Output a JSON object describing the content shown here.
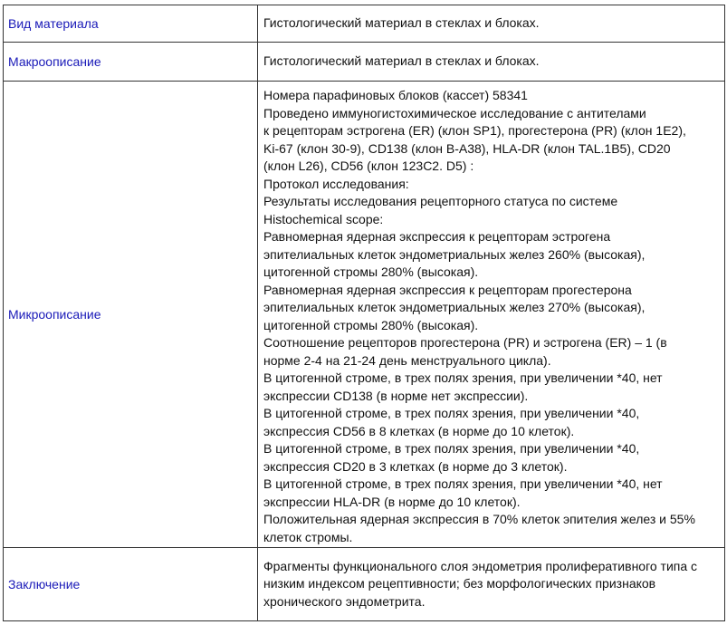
{
  "rows": [
    {
      "label": "Вид материала",
      "lines": [
        "Гистологический материал в стеклах и блоках."
      ]
    },
    {
      "label": "Макроописание",
      "lines": [
        "Гистологический материал в стеклах и блоках."
      ]
    },
    {
      "label": "Микроописание",
      "lines": [
        "Номера парафиновых блоков (кассет) 58341",
        "Проведено иммуногистохимическое исследование с антителами",
        "к рецепторам эстрогена (ER) (клон SP1), прогестерона (PR) (клон 1E2),",
        "Ki-67 (клон 30-9), CD138 (клон B-A38), HLA-DR (клон TAL.1B5), CD20",
        "(клон L26), CD56 (клон 123C2. D5) :",
        "Протокол исследования:",
        "Результаты исследования рецепторного статуса по системе",
        "Histochemical scope:",
        "Равномерная ядерная экспрессия к рецепторам эстрогена",
        "эпителиальных клеток эндометриальных желез 260% (высокая),",
        "цитогенной стромы 280% (высокая).",
        "Равномерная ядерная экспрессия к рецепторам прогестерона",
        "эпителиальных клеток эндометриальных желез 270% (высокая),",
        "цитогенной стромы 280% (высокая).",
        "Соотношение рецепторов прогестерона (PR) и эстрогена (ER) – 1 (в",
        "норме 2-4 на 21-24 день менструального цикла).",
        "В цитогенной строме, в трех полях зрения, при увеличении *40, нет",
        "экспрессии CD138 (в норме нет экспрессии).",
        "В цитогенной строме, в трех полях зрения, при увеличении *40,",
        "экспрессия CD56 в 8 клетках (в норме до 10 клеток).",
        "В цитогенной строме, в трех полях зрения, при увеличении *40,",
        "экспрессия CD20 в 3 клетках (в норме до 3 клеток).",
        "В цитогенной строме, в трех полях зрения, при увеличении *40, нет",
        "экспрессии HLA-DR (в норме до 10 клеток).",
        "Положительная ядерная экспрессия в 70% клеток эпителия желез и 55%",
        "клеток стромы."
      ]
    },
    {
      "label": "Заключение",
      "lines": [
        "Фрагменты функционального слоя эндометрия пролиферативного типа с",
        "низким индексом рецептивности; без морфологических признаков",
        "хронического эндометрита."
      ]
    }
  ]
}
